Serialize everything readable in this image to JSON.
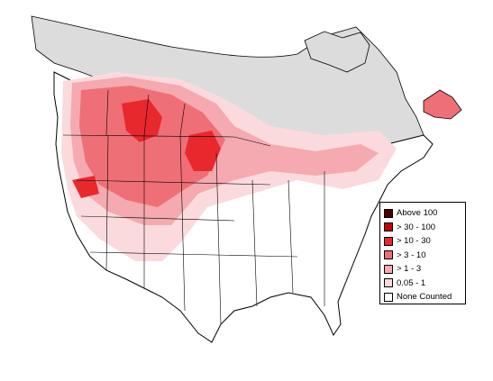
{
  "legend": {
    "items": [
      {
        "label": "Above 100",
        "color": "#4a0000"
      },
      {
        "label": "> 30 - 100",
        "color": "#c80000"
      },
      {
        "label": "> 10 - 30",
        "color": "#e8282d"
      },
      {
        "label": "> 3 - 10",
        "color": "#ef6f76"
      },
      {
        "label": "> 1 - 3",
        "color": "#f5a9b0"
      },
      {
        "label": "0.05 - 1",
        "color": "#fbdadd"
      },
      {
        "label": "None Counted",
        "color": "#ffffff"
      }
    ]
  },
  "colors": {
    "no_data": "#dcdcdc",
    "land": "#ffffff",
    "boundary": "#000000"
  }
}
